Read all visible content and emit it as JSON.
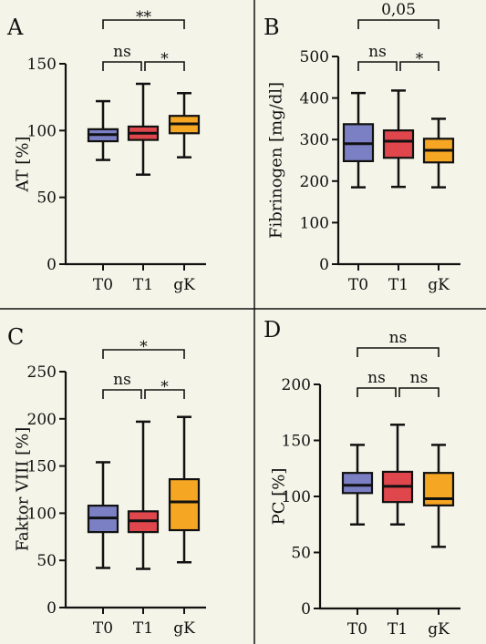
{
  "colors": {
    "background": "#f4f4e8",
    "T0": "#7b7fc4",
    "T1": "#e0474c",
    "gK": "#f5a623"
  },
  "chart_data": [
    {
      "panel": "A",
      "type": "box",
      "ylabel": "AT [%]",
      "categories": [
        "T0",
        "T1",
        "gK"
      ],
      "ylim": [
        0,
        150
      ],
      "yticks": [
        "0",
        "50",
        "100",
        "150"
      ],
      "ytick_values": [
        0,
        50,
        100,
        150
      ],
      "boxes": [
        {
          "category": "T0",
          "min": 78,
          "q1": 92,
          "median": 97,
          "q3": 101,
          "max": 122
        },
        {
          "category": "T1",
          "min": 67,
          "q1": 93,
          "median": 98,
          "q3": 103,
          "max": 135
        },
        {
          "category": "gK",
          "min": 80,
          "q1": 98,
          "median": 105,
          "q3": 111,
          "max": 128
        }
      ],
      "comparisons": [
        {
          "from": "T0",
          "to": "T1",
          "label": "ns"
        },
        {
          "from": "T1",
          "to": "gK",
          "label": "*"
        },
        {
          "from": "T0",
          "to": "gK",
          "label": "**"
        }
      ]
    },
    {
      "panel": "B",
      "type": "box",
      "ylabel": "Fibrinogen [mg/dl]",
      "categories": [
        "T0",
        "T1",
        "gK"
      ],
      "ylim": [
        0,
        500
      ],
      "yticks": [
        "0",
        "100",
        "200",
        "300",
        "400",
        "500"
      ],
      "ytick_values": [
        0,
        100,
        200,
        300,
        400,
        500
      ],
      "boxes": [
        {
          "category": "T0",
          "min": 185,
          "q1": 248,
          "median": 290,
          "q3": 337,
          "max": 412
        },
        {
          "category": "T1",
          "min": 186,
          "q1": 256,
          "median": 296,
          "q3": 322,
          "max": 418
        },
        {
          "category": "gK",
          "min": 185,
          "q1": 245,
          "median": 274,
          "q3": 302,
          "max": 350
        }
      ],
      "comparisons": [
        {
          "from": "T0",
          "to": "T1",
          "label": "ns"
        },
        {
          "from": "T1",
          "to": "gK",
          "label": "*"
        },
        {
          "from": "T0",
          "to": "gK",
          "label": "0,05"
        }
      ]
    },
    {
      "panel": "C",
      "type": "box",
      "ylabel": "Faktor VIII [%]",
      "categories": [
        "T0",
        "T1",
        "gK"
      ],
      "ylim": [
        0,
        250
      ],
      "yticks": [
        "0",
        "50",
        "100",
        "150",
        "200",
        "250"
      ],
      "ytick_values": [
        0,
        50,
        100,
        150,
        200,
        250
      ],
      "boxes": [
        {
          "category": "T0",
          "min": 42,
          "q1": 80,
          "median": 95,
          "q3": 108,
          "max": 154
        },
        {
          "category": "T1",
          "min": 41,
          "q1": 80,
          "median": 92,
          "q3": 102,
          "max": 197
        },
        {
          "category": "gK",
          "min": 48,
          "q1": 82,
          "median": 112,
          "q3": 136,
          "max": 202
        }
      ],
      "comparisons": [
        {
          "from": "T0",
          "to": "T1",
          "label": "ns"
        },
        {
          "from": "T1",
          "to": "gK",
          "label": "*"
        },
        {
          "from": "T0",
          "to": "gK",
          "label": "*"
        }
      ]
    },
    {
      "panel": "D",
      "type": "box",
      "ylabel": "PC [%]",
      "categories": [
        "T0",
        "T1",
        "gK"
      ],
      "ylim": [
        0,
        200
      ],
      "yticks": [
        "0",
        "50",
        "100",
        "150",
        "200"
      ],
      "ytick_values": [
        0,
        50,
        100,
        150,
        200
      ],
      "boxes": [
        {
          "category": "T0",
          "min": 75,
          "q1": 103,
          "median": 110,
          "q3": 121,
          "max": 146
        },
        {
          "category": "T1",
          "min": 75,
          "q1": 95,
          "median": 109,
          "q3": 122,
          "max": 164
        },
        {
          "category": "gK",
          "min": 55,
          "q1": 92,
          "median": 98,
          "q3": 121,
          "max": 146
        }
      ],
      "comparisons": [
        {
          "from": "T0",
          "to": "T1",
          "label": "ns"
        },
        {
          "from": "T1",
          "to": "gK",
          "label": "ns"
        },
        {
          "from": "T0",
          "to": "gK",
          "label": "ns"
        }
      ]
    }
  ]
}
